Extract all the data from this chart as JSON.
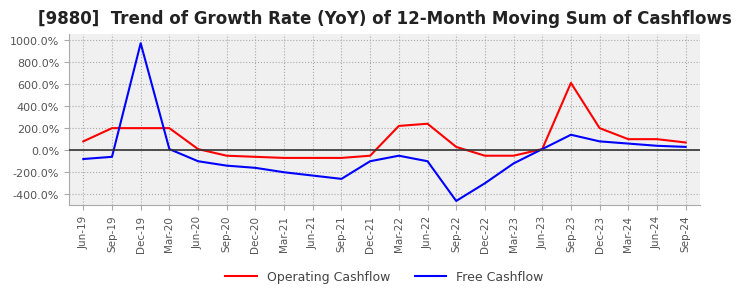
{
  "title": "[9880]  Trend of Growth Rate (YoY) of 12-Month Moving Sum of Cashflows",
  "title_fontsize": 12,
  "ylim": [
    -500,
    1050
  ],
  "yticks": [
    -400,
    -200,
    0,
    200,
    400,
    600,
    800,
    1000
  ],
  "legend_labels": [
    "Operating Cashflow",
    "Free Cashflow"
  ],
  "line_colors": [
    "#ff0000",
    "#0000ff"
  ],
  "background_color": "#ffffff",
  "plot_bg_color": "#f0f0f0",
  "grid_color": "#aaaaaa",
  "x_labels": [
    "Jun-19",
    "Sep-19",
    "Dec-19",
    "Mar-20",
    "Jun-20",
    "Sep-20",
    "Dec-20",
    "Mar-21",
    "Jun-21",
    "Sep-21",
    "Dec-21",
    "Mar-22",
    "Jun-22",
    "Sep-22",
    "Dec-22",
    "Mar-23",
    "Jun-23",
    "Sep-23",
    "Dec-23",
    "Mar-24",
    "Jun-24",
    "Sep-24"
  ],
  "operating_cashflow": [
    80,
    200,
    200,
    200,
    10,
    -50,
    -60,
    -70,
    -70,
    -70,
    -50,
    220,
    240,
    30,
    -50,
    -50,
    10,
    610,
    200,
    100,
    100,
    70
  ],
  "free_cashflow": [
    -80,
    -60,
    970,
    10,
    -100,
    -140,
    -160,
    -200,
    -230,
    -260,
    -100,
    -50,
    -100,
    -460,
    -300,
    -120,
    10,
    140,
    80,
    60,
    40,
    30
  ]
}
